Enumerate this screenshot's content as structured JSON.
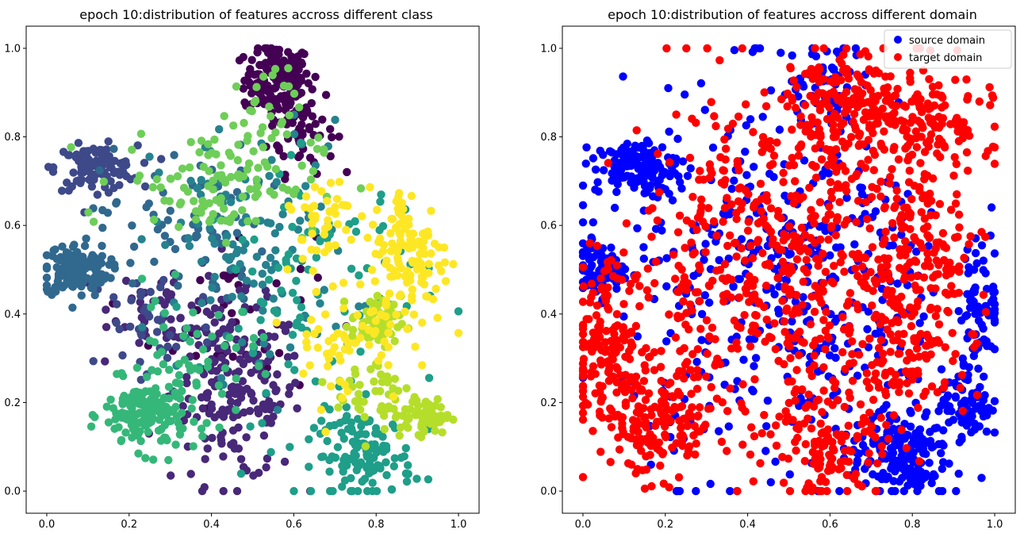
{
  "chart_data": [
    {
      "type": "scatter",
      "title": "epoch 10:distribution of features accross different class",
      "xlabel": "",
      "ylabel": "",
      "xlim": [
        -0.05,
        1.05
      ],
      "ylim": [
        -0.05,
        1.05
      ],
      "xticks": [
        "0.0",
        "0.2",
        "0.4",
        "0.6",
        "0.8",
        "1.0"
      ],
      "yticks": [
        "0.0",
        "0.2",
        "0.4",
        "0.6",
        "0.8",
        "1.0"
      ],
      "grid": false,
      "colormap": "viridis",
      "clusters": [
        {
          "color": "#440154",
          "center": [
            0.56,
            0.93
          ],
          "spread": [
            0.04,
            0.04
          ],
          "n": 150
        },
        {
          "color": "#440154",
          "center": [
            0.62,
            0.82
          ],
          "spread": [
            0.04,
            0.05
          ],
          "n": 60
        },
        {
          "color": "#440154",
          "center": [
            0.45,
            0.4
          ],
          "spread": [
            0.1,
            0.1
          ],
          "n": 40
        },
        {
          "color": "#482878",
          "center": [
            0.46,
            0.22
          ],
          "spread": [
            0.08,
            0.1
          ],
          "n": 190
        },
        {
          "color": "#482878",
          "center": [
            0.3,
            0.42
          ],
          "spread": [
            0.07,
            0.05
          ],
          "n": 50
        },
        {
          "color": "#3e4989",
          "center": [
            0.12,
            0.73
          ],
          "spread": [
            0.05,
            0.025
          ],
          "n": 110
        },
        {
          "color": "#3e4989",
          "center": [
            0.25,
            0.37
          ],
          "spread": [
            0.08,
            0.08
          ],
          "n": 40
        },
        {
          "color": "#31688e",
          "center": [
            0.07,
            0.5
          ],
          "spread": [
            0.04,
            0.03
          ],
          "n": 140
        },
        {
          "color": "#31688e",
          "center": [
            0.33,
            0.6
          ],
          "spread": [
            0.1,
            0.09
          ],
          "n": 70
        },
        {
          "color": "#26828e",
          "center": [
            0.5,
            0.55
          ],
          "spread": [
            0.12,
            0.14
          ],
          "n": 120
        },
        {
          "color": "#1f9e89",
          "center": [
            0.77,
            0.08
          ],
          "spread": [
            0.06,
            0.05
          ],
          "n": 130
        },
        {
          "color": "#1f9e89",
          "center": [
            0.65,
            0.45
          ],
          "spread": [
            0.14,
            0.14
          ],
          "n": 90
        },
        {
          "color": "#35b779",
          "center": [
            0.24,
            0.17
          ],
          "spread": [
            0.05,
            0.04
          ],
          "n": 150
        },
        {
          "color": "#35b779",
          "center": [
            0.35,
            0.28
          ],
          "spread": [
            0.08,
            0.08
          ],
          "n": 60
        },
        {
          "color": "#6ece58",
          "center": [
            0.42,
            0.7
          ],
          "spread": [
            0.12,
            0.06
          ],
          "n": 110
        },
        {
          "color": "#6ece58",
          "center": [
            0.52,
            0.85
          ],
          "spread": [
            0.05,
            0.05
          ],
          "n": 30
        },
        {
          "color": "#b5de2b",
          "center": [
            0.8,
            0.38
          ],
          "spread": [
            0.03,
            0.03
          ],
          "n": 70
        },
        {
          "color": "#b5de2b",
          "center": [
            0.92,
            0.17
          ],
          "spread": [
            0.03,
            0.02
          ],
          "n": 60
        },
        {
          "color": "#b5de2b",
          "center": [
            0.8,
            0.22
          ],
          "spread": [
            0.05,
            0.05
          ],
          "n": 50
        },
        {
          "color": "#fde725",
          "center": [
            0.88,
            0.53
          ],
          "spread": [
            0.05,
            0.08
          ],
          "n": 130
        },
        {
          "color": "#fde725",
          "center": [
            0.72,
            0.35
          ],
          "spread": [
            0.07,
            0.08
          ],
          "n": 60
        },
        {
          "color": "#fde725",
          "center": [
            0.66,
            0.62
          ],
          "spread": [
            0.05,
            0.05
          ],
          "n": 40
        }
      ]
    },
    {
      "type": "scatter",
      "title": "epoch 10:distribution of features accross different domain",
      "xlabel": "",
      "ylabel": "",
      "xlim": [
        -0.05,
        1.05
      ],
      "ylim": [
        -0.05,
        1.05
      ],
      "xticks": [
        "0.0",
        "0.2",
        "0.4",
        "0.6",
        "0.8",
        "1.0"
      ],
      "yticks": [
        "0.0",
        "0.2",
        "0.4",
        "0.6",
        "0.8",
        "1.0"
      ],
      "grid": false,
      "legend_position": "top-right",
      "series": [
        {
          "name": "source domain",
          "color": "#0000ff",
          "clusters": [
            {
              "center": [
                0.13,
                0.73
              ],
              "spread": [
                0.05,
                0.03
              ],
              "n": 130
            },
            {
              "center": [
                0.04,
                0.5
              ],
              "spread": [
                0.03,
                0.03
              ],
              "n": 90
            },
            {
              "center": [
                0.77,
                0.08
              ],
              "spread": [
                0.06,
                0.05
              ],
              "n": 170
            },
            {
              "center": [
                0.93,
                0.2
              ],
              "spread": [
                0.03,
                0.04
              ],
              "n": 80
            },
            {
              "center": [
                0.97,
                0.42
              ],
              "spread": [
                0.03,
                0.07
              ],
              "n": 70
            },
            {
              "center": [
                0.58,
                0.92
              ],
              "spread": [
                0.05,
                0.05
              ],
              "n": 60
            },
            {
              "center": [
                0.5,
                0.45
              ],
              "spread": [
                0.2,
                0.22
              ],
              "n": 420
            }
          ]
        },
        {
          "name": "target domain",
          "color": "#ff0000",
          "clusters": [
            {
              "center": [
                0.06,
                0.35
              ],
              "spread": [
                0.05,
                0.08
              ],
              "n": 150
            },
            {
              "center": [
                0.17,
                0.15
              ],
              "spread": [
                0.08,
                0.06
              ],
              "n": 170
            },
            {
              "center": [
                0.8,
                0.84
              ],
              "spread": [
                0.1,
                0.07
              ],
              "n": 180
            },
            {
              "center": [
                0.61,
                0.86
              ],
              "spread": [
                0.05,
                0.07
              ],
              "n": 110
            },
            {
              "center": [
                0.5,
                0.5
              ],
              "spread": [
                0.2,
                0.2
              ],
              "n": 620
            },
            {
              "center": [
                0.6,
                0.09
              ],
              "spread": [
                0.06,
                0.05
              ],
              "n": 90
            },
            {
              "center": [
                0.82,
                0.55
              ],
              "spread": [
                0.07,
                0.12
              ],
              "n": 120
            },
            {
              "center": [
                0.78,
                0.3
              ],
              "spread": [
                0.08,
                0.06
              ],
              "n": 80
            }
          ]
        }
      ]
    }
  ]
}
